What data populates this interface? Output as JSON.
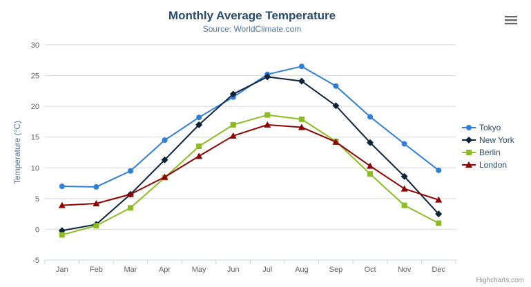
{
  "header": {
    "title": "Monthly Average Temperature",
    "subtitle": "Source: WorldClimate.com"
  },
  "credits": {
    "label": "Highcharts.com"
  },
  "context_menu": {
    "icon": "hamburger-icon"
  },
  "chart_data": {
    "type": "line",
    "title": "Monthly Average Temperature",
    "subtitle": "Source: WorldClimate.com",
    "xlabel": "",
    "ylabel": "Temperature (°C)",
    "categories": [
      "Jan",
      "Feb",
      "Mar",
      "Apr",
      "May",
      "Jun",
      "Jul",
      "Aug",
      "Sep",
      "Oct",
      "Nov",
      "Dec"
    ],
    "series": [
      {
        "name": "Tokyo",
        "color": "#2f7ed8",
        "marker": "circle",
        "values": [
          7.0,
          6.9,
          9.5,
          14.5,
          18.2,
          21.5,
          25.2,
          26.5,
          23.3,
          18.3,
          13.9,
          9.6
        ]
      },
      {
        "name": "New York",
        "color": "#0d233a",
        "marker": "diamond",
        "values": [
          -0.2,
          0.8,
          5.7,
          11.3,
          17.0,
          22.0,
          24.8,
          24.1,
          20.1,
          14.1,
          8.6,
          2.5
        ]
      },
      {
        "name": "Berlin",
        "color": "#8bbc21",
        "marker": "square",
        "values": [
          -0.9,
          0.6,
          3.5,
          8.4,
          13.5,
          17.0,
          18.6,
          17.9,
          14.3,
          9.0,
          3.9,
          1.0
        ]
      },
      {
        "name": "London",
        "color": "#910000",
        "marker": "triangle",
        "values": [
          3.9,
          4.2,
          5.7,
          8.5,
          11.9,
          15.2,
          17.0,
          16.6,
          14.2,
          10.3,
          6.6,
          4.8
        ]
      }
    ],
    "ylim": [
      -5,
      30
    ],
    "ytick_step": 5,
    "grid": true,
    "legend_position": "right",
    "styles": {
      "grid_color": "#d8d8d8",
      "axis_line_color": "#c0d0e0",
      "axis_label_color": "#606060",
      "title_color": "#274b6d",
      "subtitle_color": "#4d759e",
      "legend_text_color": "#274b6d",
      "credits_color": "#909090"
    }
  }
}
